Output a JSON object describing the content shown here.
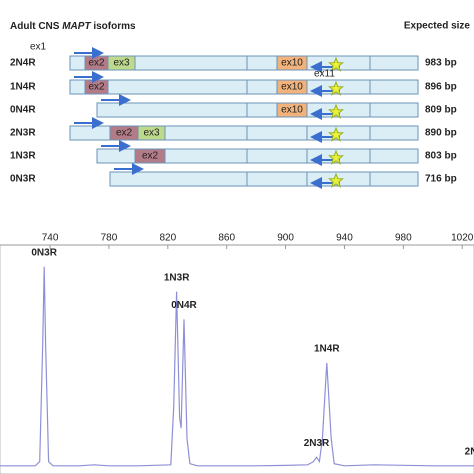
{
  "diagram": {
    "title_parts": [
      "Adult CNS ",
      "MAPT",
      " isoforms"
    ],
    "size_header": "Expected size",
    "primer_labels": [
      "ex1",
      "ex11"
    ],
    "rows": [
      {
        "name": "2N4R",
        "size": "983 bp",
        "exons": [
          "ex2",
          "ex3",
          "ex10"
        ]
      },
      {
        "name": "1N4R",
        "size": "896 bp",
        "exons": [
          "ex2",
          "ex10"
        ]
      },
      {
        "name": "0N4R",
        "size": "809 bp",
        "exons": [
          "ex10"
        ]
      },
      {
        "name": "2N3R",
        "size": "890 bp",
        "exons": [
          "ex2",
          "ex3"
        ]
      },
      {
        "name": "1N3R",
        "size": "803 bp",
        "exons": [
          "ex2"
        ]
      },
      {
        "name": "0N3R",
        "size": "716 bp",
        "exons": []
      }
    ]
  },
  "chart_data": {
    "type": "line",
    "xlim": [
      706,
      1028
    ],
    "xticks": [
      740,
      780,
      820,
      860,
      900,
      940,
      980,
      1020
    ],
    "ylim": [
      0,
      1050
    ],
    "series": [
      {
        "name": "trace",
        "color": "#8f8fd8",
        "x": [
          706,
          730,
          733,
          735,
          736,
          737,
          739,
          742,
          760,
          770,
          780,
          800,
          822,
          824,
          826,
          828,
          829,
          831,
          833,
          835,
          840,
          860,
          880,
          900,
          915,
          919,
          921,
          923,
          925,
          928,
          931,
          933,
          940,
          960,
          1000,
          1028
        ],
        "values": [
          20,
          20,
          40,
          600,
          970,
          600,
          40,
          20,
          20,
          25,
          20,
          20,
          25,
          300,
          851,
          250,
          200,
          719,
          150,
          30,
          20,
          20,
          20,
          22,
          25,
          40,
          61,
          40,
          150,
          511,
          150,
          30,
          20,
          25,
          20,
          20
        ]
      }
    ],
    "annotations": [
      {
        "text": "0N3R",
        "x": 736,
        "y": 970
      },
      {
        "text": "1N3R",
        "x": 826,
        "y": 851
      },
      {
        "text": "0N4R",
        "x": 831,
        "y": 719
      },
      {
        "text": "1N4R",
        "x": 928,
        "y": 511
      },
      {
        "text": "2N3R",
        "x": 921,
        "y": 61
      },
      {
        "text": "2N",
        "x": 1026,
        "y": 20
      }
    ]
  }
}
